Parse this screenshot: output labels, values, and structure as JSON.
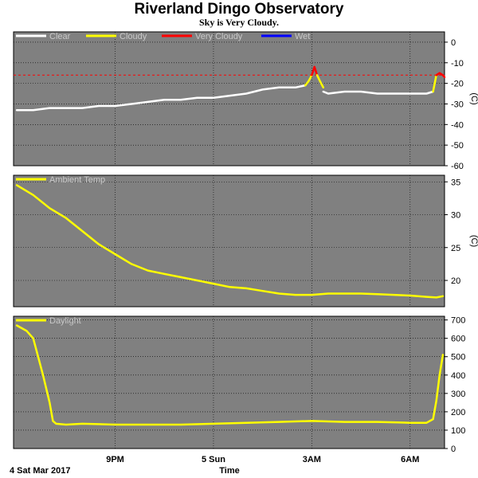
{
  "title": "Riverland Dingo Observatory",
  "subtitle": "Sky is Very Cloudy.",
  "x_axis": {
    "label": "Time",
    "start_label": "4 Sat Mar 2017",
    "ticks": [
      {
        "label": "9PM",
        "hours": 3
      },
      {
        "label": "5 Sun",
        "hours": 6
      },
      {
        "label": "3AM",
        "hours": 9
      },
      {
        "label": "6AM",
        "hours": 12
      }
    ],
    "range_hours": [
      -0.1,
      13.05
    ]
  },
  "colors": {
    "plot_bg": "#808080",
    "grid": "#000000",
    "clear": "#ffffff",
    "cloudy": "#ffff00",
    "very_cloudy": "#ff0000",
    "wet": "#0000ff",
    "threshold": "#ff0000",
    "axis_unit": "(C)"
  },
  "chart_data": [
    {
      "type": "line",
      "name": "sky",
      "legend": [
        {
          "label": "Clear",
          "color": "#ffffff"
        },
        {
          "label": "Cloudy",
          "color": "#ffff00"
        },
        {
          "label": "Very Cloudy",
          "color": "#ff0000"
        },
        {
          "label": "Wet",
          "color": "#0000ff"
        }
      ],
      "ylabel": "(C)",
      "ylim": [
        -60,
        5
      ],
      "yticks": [
        0,
        -10,
        -20,
        -30,
        -40,
        -50,
        -60
      ],
      "threshold": -16,
      "series": [
        {
          "name": "Clear",
          "color": "#ffffff",
          "x": [
            0,
            0.5,
            1,
            1.5,
            2,
            2.5,
            3,
            3.5,
            4,
            4.5,
            5,
            5.5,
            6,
            6.5,
            7,
            7.5,
            8,
            8.5,
            8.8
          ],
          "y": [
            -33,
            -33,
            -32,
            -32,
            -32,
            -31,
            -31,
            -30,
            -29,
            -28,
            -28,
            -27,
            -27,
            -26,
            -25,
            -23,
            -22,
            -22,
            -21
          ]
        },
        {
          "name": "Cloudy",
          "color": "#ffff00",
          "x": [
            8.8,
            8.9,
            9.0
          ],
          "y": [
            -21,
            -19,
            -16
          ]
        },
        {
          "name": "Very Cloudy",
          "color": "#ff0000",
          "x": [
            9.0,
            9.08,
            9.16
          ],
          "y": [
            -16,
            -12,
            -16
          ]
        },
        {
          "name": "Cloudy",
          "color": "#ffff00",
          "x": [
            9.16,
            9.25,
            9.35
          ],
          "y": [
            -16,
            -19,
            -22
          ]
        },
        {
          "name": "Clear",
          "color": "#ffffff",
          "x": [
            9.35,
            9.5,
            10,
            10.5,
            11,
            11.5,
            12,
            12.5,
            12.7
          ],
          "y": [
            -24,
            -25,
            -24,
            -24,
            -25,
            -25,
            -25,
            -25,
            -24
          ]
        },
        {
          "name": "Cloudy",
          "color": "#ffff00",
          "x": [
            12.7,
            12.75,
            12.8
          ],
          "y": [
            -24,
            -20,
            -16
          ]
        },
        {
          "name": "Very Cloudy",
          "color": "#ff0000",
          "x": [
            12.8,
            12.9,
            13.0,
            13.05
          ],
          "y": [
            -16,
            -15,
            -16,
            -17
          ]
        }
      ]
    },
    {
      "type": "line",
      "name": "ambient",
      "legend": [
        {
          "label": "Ambient Temp",
          "color": "#ffff00"
        }
      ],
      "ylabel": "(C)",
      "ylim": [
        16,
        36
      ],
      "yticks": [
        35,
        30,
        25,
        20
      ],
      "series": [
        {
          "name": "Ambient Temp",
          "color": "#ffff00",
          "x": [
            0,
            0.5,
            1,
            1.5,
            2,
            2.5,
            3,
            3.5,
            4,
            4.5,
            5,
            5.5,
            6,
            6.5,
            7,
            7.5,
            8,
            8.5,
            9,
            9.5,
            10,
            10.5,
            11,
            11.5,
            12,
            12.5,
            12.8,
            13.0
          ],
          "y": [
            34.5,
            33,
            31,
            29.5,
            27.5,
            25.5,
            24,
            22.5,
            21.5,
            21,
            20.5,
            20,
            19.5,
            19,
            18.8,
            18.4,
            18,
            17.8,
            17.8,
            18,
            18,
            18,
            17.9,
            17.8,
            17.7,
            17.5,
            17.4,
            17.6
          ]
        }
      ]
    },
    {
      "type": "line",
      "name": "daylight",
      "legend": [
        {
          "label": "Daylight",
          "color": "#ffff00"
        }
      ],
      "ylabel": "",
      "ylim": [
        0,
        720
      ],
      "yticks": [
        700,
        600,
        500,
        400,
        300,
        200,
        100,
        0
      ],
      "series": [
        {
          "name": "Daylight",
          "color": "#ffff00",
          "x": [
            0,
            0.3,
            0.5,
            0.8,
            1.0,
            1.1,
            1.2,
            1.5,
            2.0,
            3.0,
            4.0,
            5.0,
            6.0,
            7.0,
            8.0,
            9.0,
            10.0,
            11.0,
            12.0,
            12.5,
            12.7,
            12.8,
            12.9,
            13.0
          ],
          "y": [
            670,
            640,
            600,
            400,
            250,
            150,
            135,
            130,
            135,
            130,
            130,
            130,
            135,
            140,
            145,
            150,
            145,
            145,
            140,
            140,
            160,
            260,
            400,
            510
          ]
        }
      ]
    }
  ]
}
